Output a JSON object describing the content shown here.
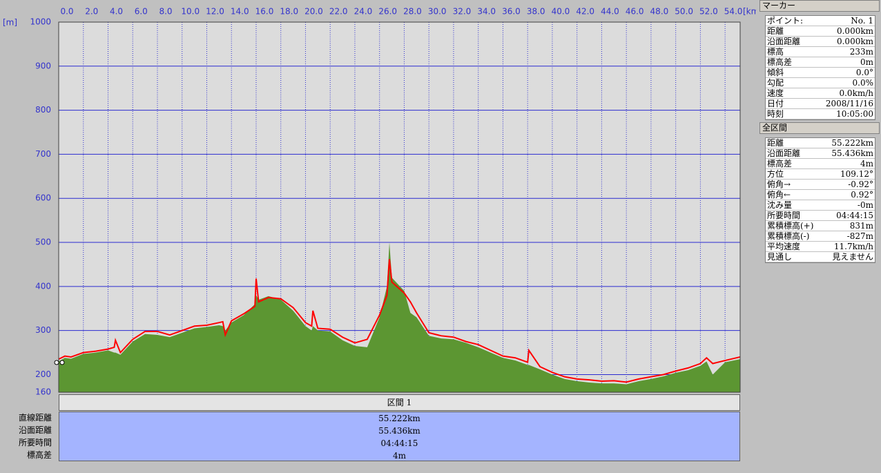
{
  "chart_data": {
    "type": "area",
    "x_label": "[km]",
    "y_label": "[m]",
    "xlim": [
      0,
      55.222
    ],
    "ylim": [
      160,
      1000
    ],
    "xticks": [
      {
        "value": 0,
        "label": "0.0"
      },
      {
        "value": 2,
        "label": "2.0"
      },
      {
        "value": 4,
        "label": "4.0"
      },
      {
        "value": 6,
        "label": "6.0"
      },
      {
        "value": 8,
        "label": "8.0"
      },
      {
        "value": 10,
        "label": "10.0"
      },
      {
        "value": 12,
        "label": "12.0"
      },
      {
        "value": 14,
        "label": "14.0"
      },
      {
        "value": 16,
        "label": "16.0"
      },
      {
        "value": 18,
        "label": "18.0"
      },
      {
        "value": 20,
        "label": "20.0"
      },
      {
        "value": 22,
        "label": "22.0"
      },
      {
        "value": 24,
        "label": "24.0"
      },
      {
        "value": 26,
        "label": "26.0"
      },
      {
        "value": 28,
        "label": "28.0"
      },
      {
        "value": 30,
        "label": "30.0"
      },
      {
        "value": 32,
        "label": "32.0"
      },
      {
        "value": 34,
        "label": "34.0"
      },
      {
        "value": 36,
        "label": "36.0"
      },
      {
        "value": 38,
        "label": "38.0"
      },
      {
        "value": 40,
        "label": "40.0"
      },
      {
        "value": 42,
        "label": "42.0"
      },
      {
        "value": 44,
        "label": "44.0"
      },
      {
        "value": 46,
        "label": "46.0"
      },
      {
        "value": 48,
        "label": "48.0"
      },
      {
        "value": 50,
        "label": "50.0"
      },
      {
        "value": 52,
        "label": "52.0"
      },
      {
        "value": 54,
        "label": "54.0"
      }
    ],
    "yticks": [
      160,
      200,
      300,
      400,
      500,
      600,
      700,
      800,
      900,
      1000
    ],
    "grid": true,
    "x": [
      0,
      0.5,
      1,
      2,
      3,
      4,
      4.5,
      4.6,
      5,
      6,
      7,
      8,
      9,
      10,
      11,
      12,
      13,
      13.3,
      13.5,
      14,
      15,
      15.9,
      16,
      16.2,
      17,
      18,
      19,
      20,
      20.5,
      20.6,
      21,
      22,
      23,
      24,
      25,
      26,
      26.6,
      26.8,
      27,
      28,
      28.5,
      29,
      30,
      31,
      32,
      33,
      34,
      35,
      36,
      37,
      38,
      38.1,
      39,
      40,
      41,
      42,
      43,
      44,
      45,
      46,
      47,
      48,
      49,
      50,
      51,
      52,
      52.5,
      53,
      54,
      55.222
    ],
    "series": [
      {
        "color": "#5c9632",
        "values": [
          230,
          238,
          236,
          247,
          250,
          255,
          250,
          250,
          245,
          275,
          292,
          290,
          285,
          295,
          305,
          308,
          312,
          310,
          300,
          318,
          335,
          360,
          380,
          370,
          378,
          370,
          345,
          310,
          300,
          310,
          300,
          298,
          278,
          265,
          262,
          330,
          400,
          500,
          420,
          390,
          340,
          330,
          288,
          282,
          280,
          272,
          262,
          250,
          238,
          232,
          222,
          222,
          212,
          200,
          190,
          185,
          182,
          180,
          180,
          178,
          185,
          190,
          196,
          204,
          210,
          220,
          230,
          200,
          228,
          235
        ]
      },
      {
        "color": "#ff0000",
        "values": [
          235,
          242,
          240,
          250,
          253,
          258,
          262,
          278,
          250,
          280,
          298,
          298,
          290,
          300,
          310,
          312,
          318,
          320,
          290,
          322,
          338,
          355,
          418,
          365,
          375,
          372,
          352,
          318,
          310,
          345,
          305,
          303,
          285,
          272,
          280,
          335,
          380,
          462,
          410,
          385,
          365,
          340,
          295,
          288,
          285,
          275,
          268,
          255,
          242,
          238,
          228,
          255,
          218,
          205,
          195,
          190,
          188,
          185,
          186,
          183,
          190,
          195,
          200,
          208,
          215,
          225,
          238,
          225,
          232,
          240
        ]
      }
    ]
  },
  "marker_panel": {
    "title": "マーカー",
    "rows": [
      [
        "ポイント:",
        "No. 1"
      ],
      [
        "距離",
        "0.000km"
      ],
      [
        "沿面距離",
        "0.000km"
      ],
      [
        "標高",
        "233m"
      ],
      [
        "標高差",
        "0m"
      ],
      [
        "傾斜",
        "0.0°"
      ],
      [
        "勾配",
        "0.0%"
      ],
      [
        "速度",
        "0.0km/h"
      ],
      [
        "日付",
        "2008/11/16"
      ],
      [
        "時刻",
        "10:05:00"
      ]
    ]
  },
  "total_panel": {
    "title": "全区間",
    "rows": [
      [
        "距離",
        "55.222km"
      ],
      [
        "沿面距離",
        "55.436km"
      ],
      [
        "標高差",
        "4m"
      ],
      [
        "方位",
        "109.12°"
      ],
      [
        "俯角→",
        "-0.92°"
      ],
      [
        "俯角←",
        "0.92°"
      ],
      [
        "沈み量",
        "-0m"
      ],
      [
        "所要時間",
        "04:44:15"
      ],
      [
        "累積標高(+)",
        "831m"
      ],
      [
        "累積標高(-)",
        "-827m"
      ],
      [
        "平均速度",
        "11.7km/h"
      ],
      [
        "見通し",
        "見えません"
      ]
    ]
  },
  "segment_table": {
    "header": "区間 1",
    "rows": [
      [
        "直線距離",
        "55.222km"
      ],
      [
        "沿面距離",
        "55.436km"
      ],
      [
        "所要時間",
        "04:44:15"
      ],
      [
        "標高差",
        "4m"
      ]
    ]
  }
}
